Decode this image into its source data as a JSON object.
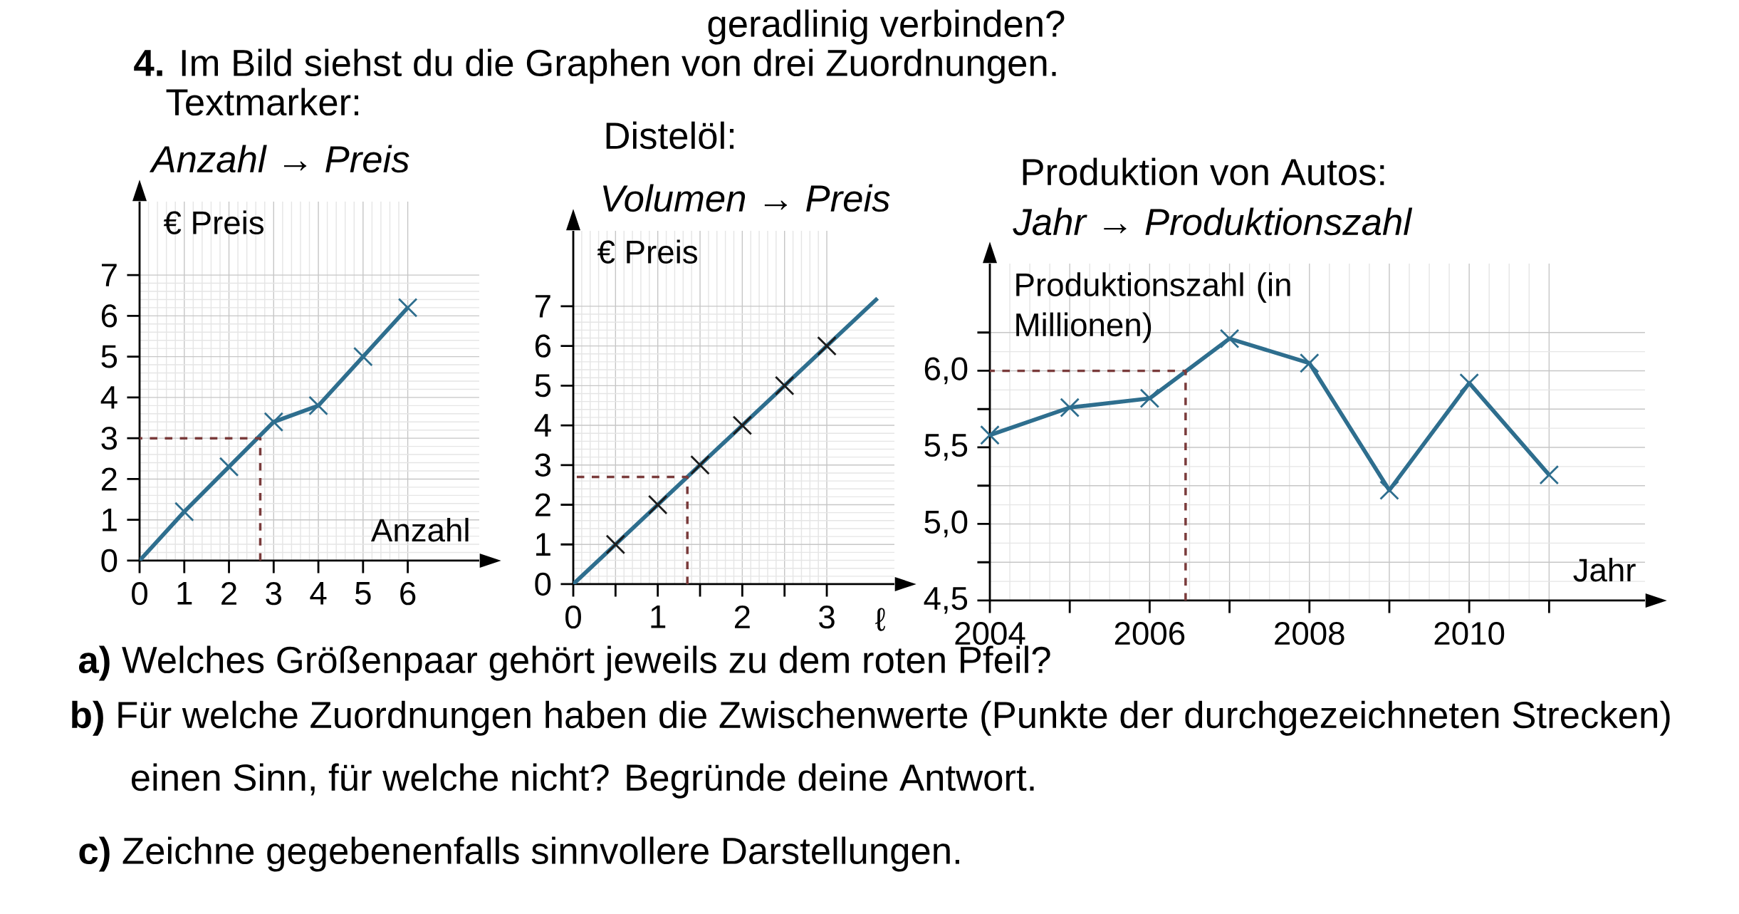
{
  "chart_data": [
    {
      "type": "line",
      "title": "Textmarker:",
      "subtitle": "Anzahl → Preis",
      "xlabel": "Anzahl",
      "ylabel": "€ Preis",
      "annotations": [
        "geradlinig verbinden?",
        "**4.** Im Bild siehst du die Graphen von drei Zuordnungen."
      ],
      "xlim": [
        0,
        7.6
      ],
      "ylim": [
        0,
        8.8
      ],
      "xticks": [
        0,
        1,
        2,
        3,
        4,
        5,
        6
      ],
      "yticks": [
        0,
        1,
        2,
        3,
        4,
        5,
        6,
        7
      ],
      "grid": true,
      "series": [
        {
          "color": "#2e6e8e",
          "marker": "cross",
          "x": [
            0,
            1,
            2,
            3,
            4,
            5,
            6
          ],
          "values": [
            0,
            1.2,
            2.3,
            3.4,
            3.8,
            5.0,
            6.2
          ]
        },
        {
          "color": "#7a3b3b",
          "line_style": "dashed",
          "x": [
            2.7,
            2.7,
            0
          ],
          "values": [
            0,
            3.0,
            3.0
          ]
        }
      ]
    },
    {
      "type": "line",
      "title": "Distelöl:",
      "subtitle": "Volumen → Preis",
      "xlabel": "ℓ",
      "ylabel": "€ Preis",
      "xlim": [
        0,
        3.8
      ],
      "ylim": [
        0,
        8.9
      ],
      "xticks": [
        0,
        {
          "value": 0.5,
          "label": null
        },
        1,
        {
          "value": 1.5,
          "label": null
        },
        2,
        {
          "value": 2.5,
          "label": null
        },
        3
      ],
      "yticks": [
        0,
        1,
        2,
        3,
        4,
        5,
        6,
        7
      ],
      "grid": true,
      "series": [
        {
          "color": "#2e6e8e",
          "x": [
            0,
            3.6
          ],
          "values": [
            0,
            7.2
          ]
        },
        {
          "type": "scatter",
          "color": "#1c1c1c",
          "marker": "cross",
          "x": [
            0.5,
            1,
            1.5,
            2,
            2.5,
            3
          ],
          "values": [
            1,
            2,
            3,
            4,
            5,
            6
          ]
        },
        {
          "color": "#7a3b3b",
          "line_style": "dashed",
          "x": [
            1.35,
            1.35,
            0
          ],
          "values": [
            0,
            2.7,
            2.7
          ]
        }
      ]
    },
    {
      "type": "line",
      "title": "Produktion von Autos:",
      "subtitle": "Jahr → Produktionszahl",
      "xlabel": "Jahr",
      "ylabel": "Produktionszahl (in Millionen)",
      "annotations": [
        "**a)** Welches Größenpaar gehört jeweils zu dem roten Pfeil?",
        "**b)** Für welche Zuordnungen haben die Zwischenwerte (Punkte der durchgezeichneten Strecken) einen Sinn, für welche nicht? Begründe deine Antwort.",
        "**c)** Zeichne gegebenenfalls sinnvollere Darstellungen."
      ],
      "xlim": [
        2004,
        2012.2
      ],
      "ylim": [
        4.5,
        6.7
      ],
      "xticks": [
        2004,
        {
          "value": 2005,
          "label": null
        },
        2006,
        {
          "value": 2007,
          "label": null
        },
        2008,
        {
          "value": 2009,
          "label": null
        },
        2010,
        {
          "value": 2011,
          "label": null
        }
      ],
      "yticks": [
        {
          "value": 4.5,
          "label": "4,5"
        },
        {
          "value": 4.75,
          "label": null
        },
        {
          "value": 5.0,
          "label": "5,0"
        },
        {
          "value": 5.25,
          "label": null
        },
        {
          "value": 5.5,
          "label": "5,5"
        },
        {
          "value": 5.75,
          "label": null
        },
        {
          "value": 6.0,
          "label": "6,0"
        },
        {
          "value": 6.25,
          "label": null
        }
      ],
      "grid": true,
      "series": [
        {
          "color": "#2e6e8e",
          "marker": "cross",
          "x": [
            2004,
            2005,
            2006,
            2007,
            2008,
            2009,
            2010,
            2011
          ],
          "values": [
            5.58,
            5.76,
            5.82,
            6.21,
            6.05,
            5.22,
            5.92,
            5.32
          ]
        },
        {
          "color": "#7a3b3b",
          "line_style": "dashed",
          "x": [
            2006.45,
            2006.45,
            2004
          ],
          "values": [
            4.5,
            6.0,
            6.0
          ]
        }
      ]
    }
  ]
}
